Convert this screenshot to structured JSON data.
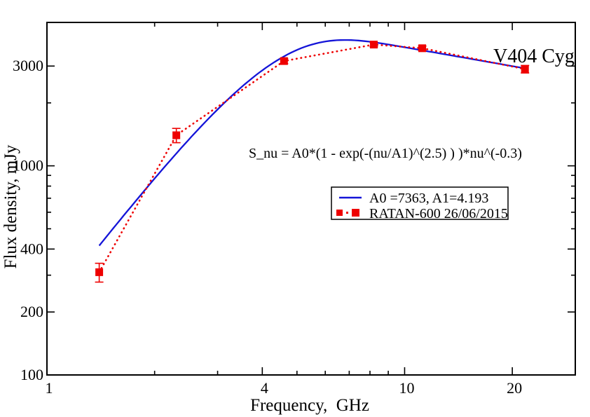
{
  "figure": {
    "background": "#ffffff"
  },
  "chart_data": {
    "type": "line",
    "title": "",
    "source_label": "V404 Cyg",
    "formula_annotation": "S_nu = A0*(1 - exp(-(nu/A1)^(2.5) ) )*nu^(-0.3)",
    "xlabel": "Frequency,  GHz",
    "ylabel": "Flux density, mJy",
    "x_scale": "log",
    "y_scale": "log",
    "xlim": [
      1,
      30
    ],
    "ylim": [
      100,
      4850
    ],
    "x_major_ticks": [
      1,
      4,
      10,
      20
    ],
    "x_minor_ticks": [
      2,
      3,
      5,
      6,
      7,
      8,
      9
    ],
    "y_major_ticks": [
      100,
      200,
      400,
      1000,
      3000
    ],
    "y_minor_ticks": [
      300,
      500,
      600,
      700,
      800,
      900,
      2000
    ],
    "grid": false,
    "ticks": "inward, mirrored on all four sides",
    "legend_position": "inside, center-right",
    "colors": {
      "model_line": "#1414d8",
      "data_series": "#ee0000",
      "formula_text": "#2228cc",
      "source_label": "#ee0000",
      "axis": "#000000"
    },
    "series": [
      {
        "name": "A0 =7363, A1=4.193",
        "kind": "model-line",
        "color_key": "model_line",
        "model": {
          "A0": 7363,
          "A1": 4.193,
          "exp_power": 2.5,
          "spectral_index": -0.3,
          "nu_range_ghz": [
            1.4,
            21.7
          ]
        }
      },
      {
        "name": "RATAN-600 26/06/2015",
        "kind": "points-dotted",
        "color_key": "data_series",
        "marker": "square",
        "x_ghz": [
          1.4,
          2.3,
          4.6,
          8.2,
          11.2,
          21.7
        ],
        "y_mjy": [
          310,
          1400,
          3170,
          3800,
          3650,
          2900
        ],
        "yerr_mjy": [
          32,
          110,
          90,
          90,
          90,
          120
        ]
      }
    ]
  }
}
